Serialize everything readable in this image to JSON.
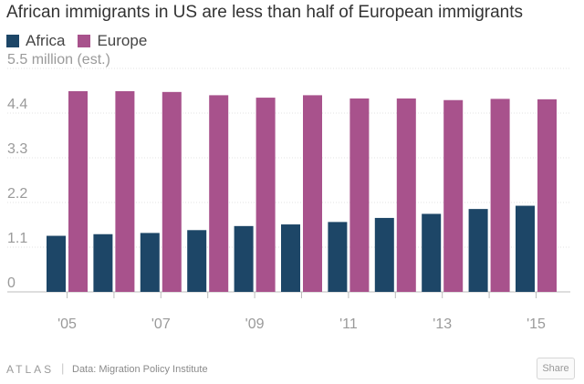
{
  "title": "African immigrants in US are less than half of European immigrants",
  "legend": [
    {
      "label": "Africa",
      "color": "#1d4667"
    },
    {
      "label": "Europe",
      "color": "#a8528c"
    }
  ],
  "footer": {
    "brand": "ATLAS",
    "source_label": "Data:",
    "source_name": "Migration Policy Institute",
    "share_label": "Share"
  },
  "chart_data": {
    "type": "bar",
    "title": "African immigrants in US are less than half of European immigrants",
    "ylabel": "5.5 million (est.)",
    "ylim": [
      0,
      5.5
    ],
    "yticks": [
      0,
      1.1,
      2.2,
      3.3,
      4.4
    ],
    "ytick_labels": [
      "0",
      "1.1",
      "2.2",
      "3.3",
      "4.4"
    ],
    "top_tick_label": "5.5 million (est.)",
    "categories": [
      "2005",
      "2006",
      "2007",
      "2008",
      "2009",
      "2010",
      "2011",
      "2012",
      "2013",
      "2014",
      "2015"
    ],
    "xtick_labels": [
      "'05",
      "",
      "'07",
      "",
      "'09",
      "",
      "'11",
      "",
      "'13",
      "",
      "'15"
    ],
    "series": [
      {
        "name": "Africa",
        "color": "#1d4667",
        "values": [
          1.38,
          1.42,
          1.45,
          1.52,
          1.62,
          1.66,
          1.72,
          1.82,
          1.92,
          2.04,
          2.12
        ]
      },
      {
        "name": "Europe",
        "color": "#a8528c",
        "values": [
          4.94,
          4.94,
          4.92,
          4.84,
          4.78,
          4.84,
          4.76,
          4.76,
          4.72,
          4.75,
          4.74
        ]
      }
    ],
    "grid": true,
    "legend_position": "top-left"
  }
}
